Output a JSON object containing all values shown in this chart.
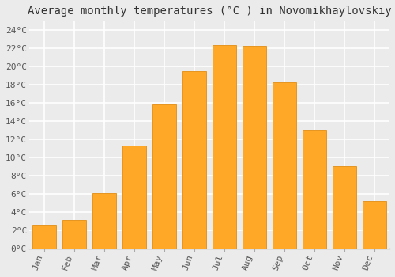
{
  "title": "Average monthly temperatures (°C ) in Novomikhaylovskiy",
  "months": [
    "Jan",
    "Feb",
    "Mar",
    "Apr",
    "May",
    "Jun",
    "Jul",
    "Aug",
    "Sep",
    "Oct",
    "Nov",
    "Dec"
  ],
  "values": [
    2.6,
    3.1,
    6.1,
    11.3,
    15.8,
    19.5,
    22.3,
    22.2,
    18.2,
    13.0,
    9.0,
    5.2
  ],
  "bar_color": "#FFA726",
  "bar_edge_color": "#E69520",
  "ylim": [
    0,
    25
  ],
  "yticks": [
    0,
    2,
    4,
    6,
    8,
    10,
    12,
    14,
    16,
    18,
    20,
    22,
    24
  ],
  "ytick_labels": [
    "0°C",
    "2°C",
    "4°C",
    "6°C",
    "8°C",
    "10°C",
    "12°C",
    "14°C",
    "16°C",
    "18°C",
    "20°C",
    "22°C",
    "24°C"
  ],
  "background_color": "#ebebeb",
  "grid_color": "#ffffff",
  "title_fontsize": 10,
  "tick_fontsize": 8,
  "font_family": "monospace"
}
